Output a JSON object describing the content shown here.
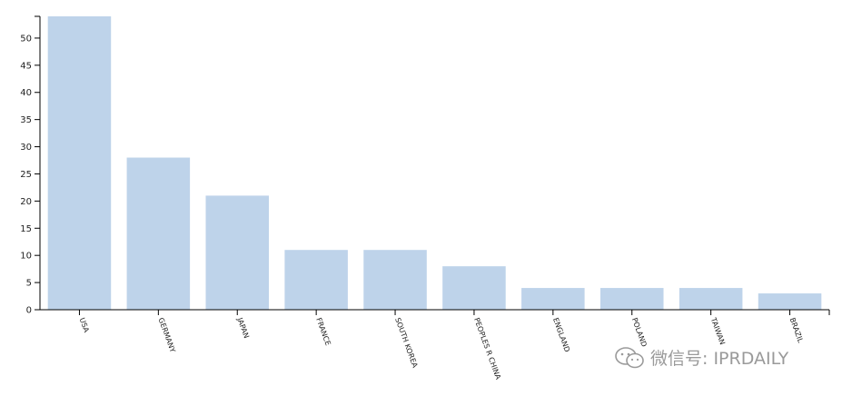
{
  "chart_data": {
    "type": "bar",
    "categories": [
      "USA",
      "GERMANY",
      "JAPAN",
      "FRANCE",
      "SOUTH KOREA",
      "PEOPLES R CHINA",
      "ENGLAND",
      "POLAND",
      "TAIWAN",
      "BRAZIL"
    ],
    "values": [
      54,
      28,
      21,
      11,
      11,
      8,
      4,
      4,
      4,
      3
    ],
    "ylim": [
      0,
      54
    ],
    "yticks": [
      0,
      5,
      10,
      15,
      20,
      25,
      30,
      35,
      40,
      45,
      50
    ],
    "title": "",
    "xlabel": "",
    "ylabel": "",
    "grid": false,
    "bar_color": "#bed3ea"
  },
  "watermark": {
    "icon": "wechat-icon",
    "text": "微信号: IPRDAILY"
  }
}
